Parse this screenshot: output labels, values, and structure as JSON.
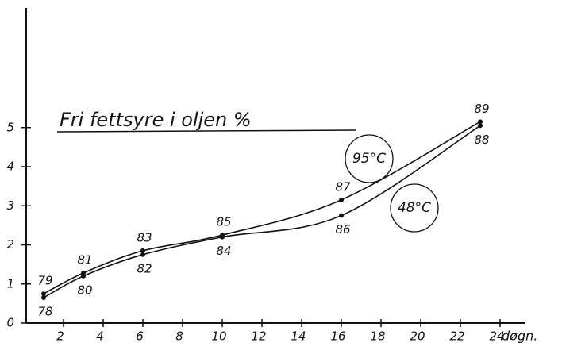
{
  "chart_data": {
    "type": "line",
    "title": "Fri fettsyre i oljen %",
    "x_label": "døgn.",
    "xlim": [
      0,
      25.4
    ],
    "ylim": [
      0,
      8
    ],
    "xticks": [
      2,
      4,
      6,
      8,
      10,
      12,
      14,
      16,
      18,
      20,
      22,
      24
    ],
    "yticks": [
      0,
      1,
      2,
      3,
      4,
      5
    ],
    "color": "#111111",
    "series": [
      {
        "name": "95°C",
        "x": [
          1,
          3,
          6,
          10,
          16,
          23
        ],
        "values": [
          0.75,
          1.28,
          1.85,
          2.25,
          3.15,
          5.15
        ],
        "point_labels": [
          "79",
          "81",
          "83",
          "85",
          "87",
          "89"
        ]
      },
      {
        "name": "48°C",
        "x": [
          1,
          3,
          6,
          10,
          16,
          23
        ],
        "values": [
          0.65,
          1.2,
          1.75,
          2.2,
          2.75,
          5.05
        ],
        "point_labels": [
          "78",
          "80",
          "82",
          "84",
          "86",
          "88"
        ]
      }
    ]
  }
}
